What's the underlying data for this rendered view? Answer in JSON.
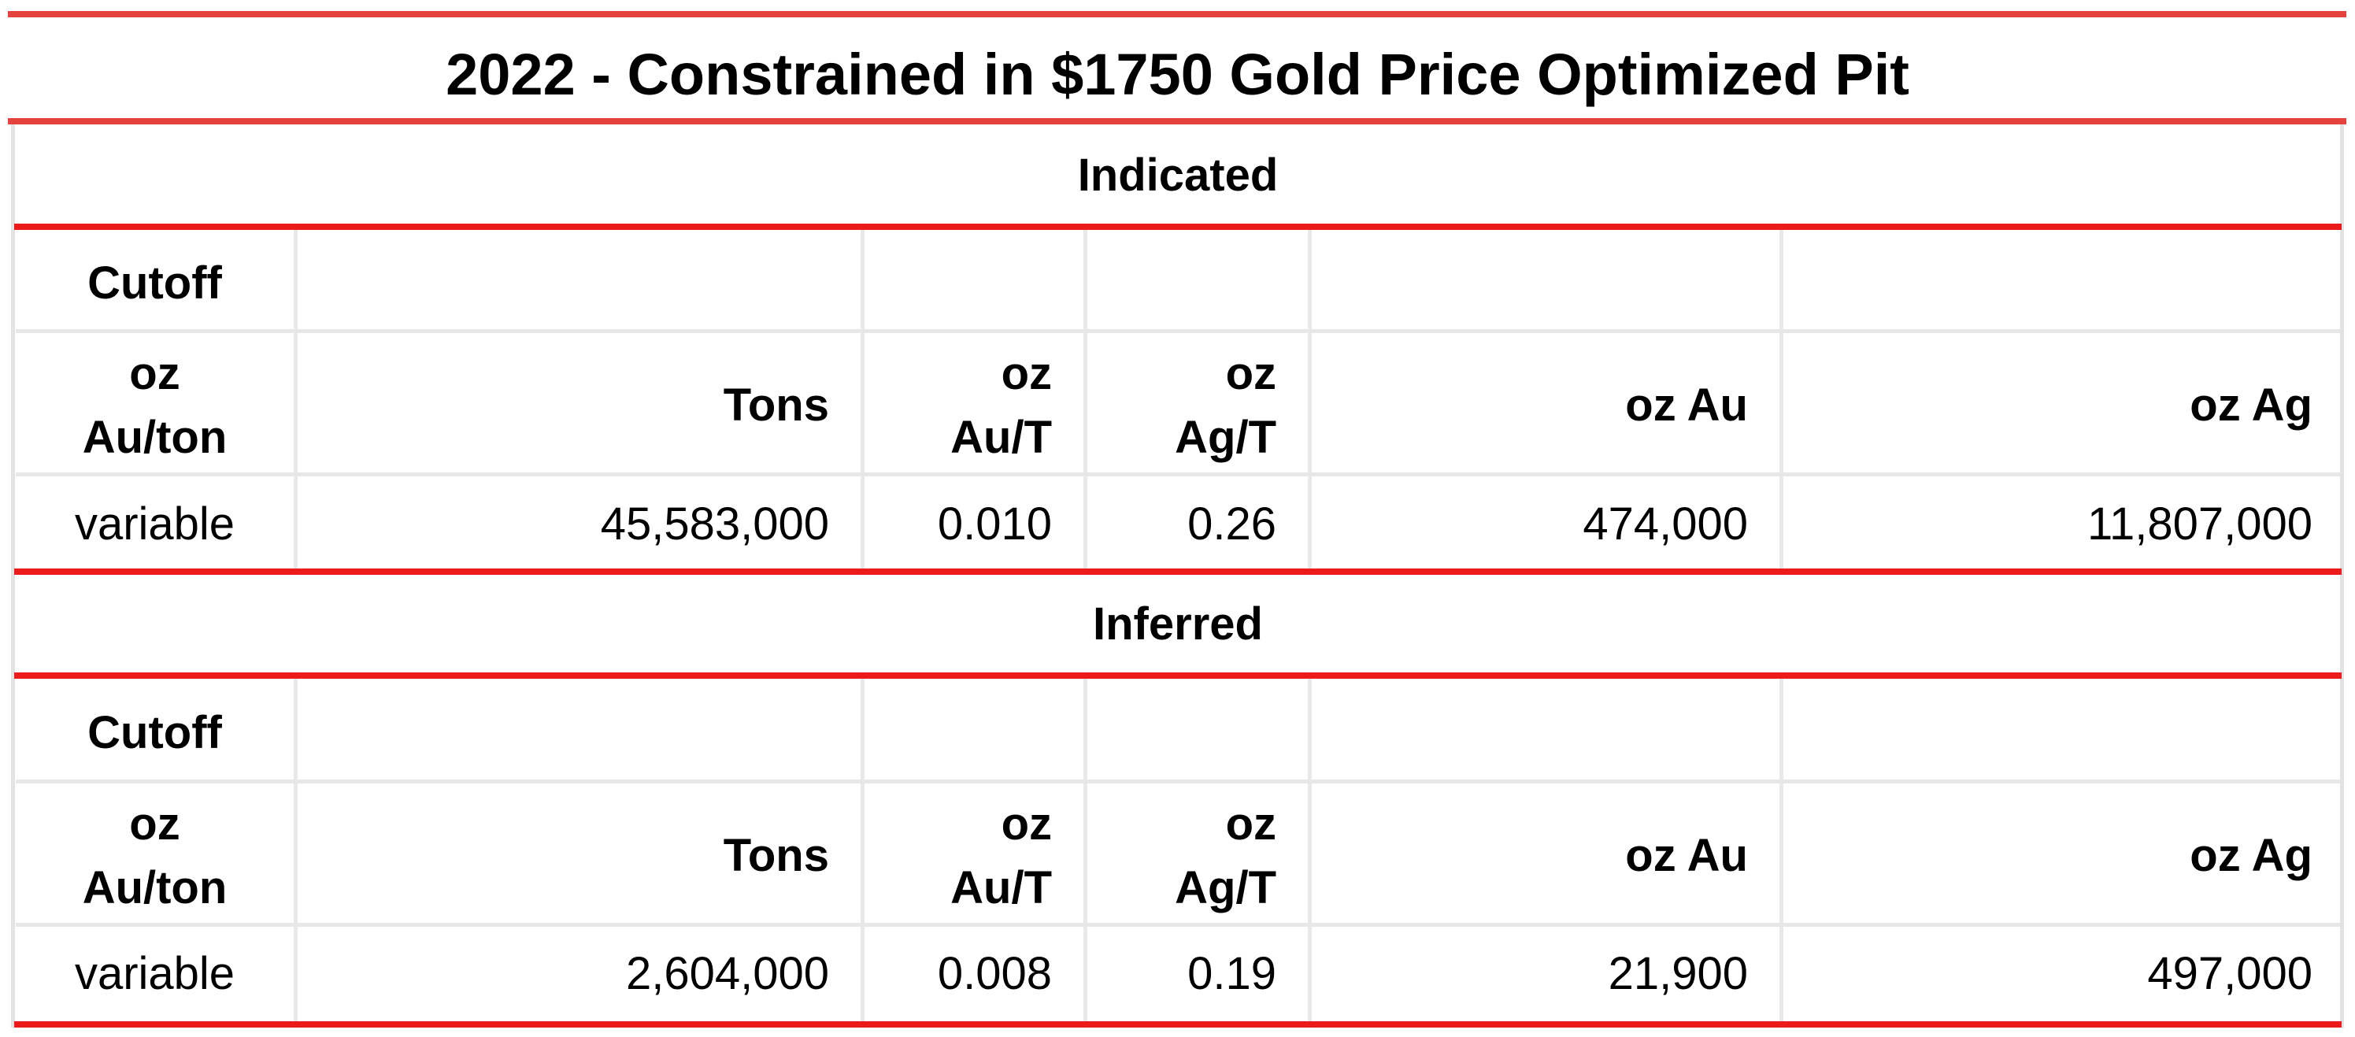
{
  "title": "2022 - Constrained in $1750 Gold Price Optimized Pit",
  "headers": {
    "cutoff": "Cutoff",
    "cutoff_unit_line1": "oz",
    "cutoff_unit_line2": "Au/ton",
    "tons": "Tons",
    "au_grade_line1": "oz",
    "au_grade_line2": "Au/T",
    "ag_grade_line1": "oz",
    "ag_grade_line2": "Ag/T",
    "oz_au": "oz Au",
    "oz_ag": "oz Ag"
  },
  "sections": [
    {
      "name": "Indicated",
      "row": {
        "cutoff": "variable",
        "tons": "45,583,000",
        "au_grade": "0.010",
        "ag_grade": "0.26",
        "oz_au": "474,000",
        "oz_ag": "11,807,000"
      }
    },
    {
      "name": "Inferred",
      "row": {
        "cutoff": "variable",
        "tons": "2,604,000",
        "au_grade": "0.008",
        "ag_grade": "0.19",
        "oz_au": "21,900",
        "oz_ag": "497,000"
      }
    }
  ],
  "colors": {
    "rule_red": "#ec1b1b",
    "title_rule": "#e5423d",
    "grid_grey": "#e7e7e7"
  }
}
